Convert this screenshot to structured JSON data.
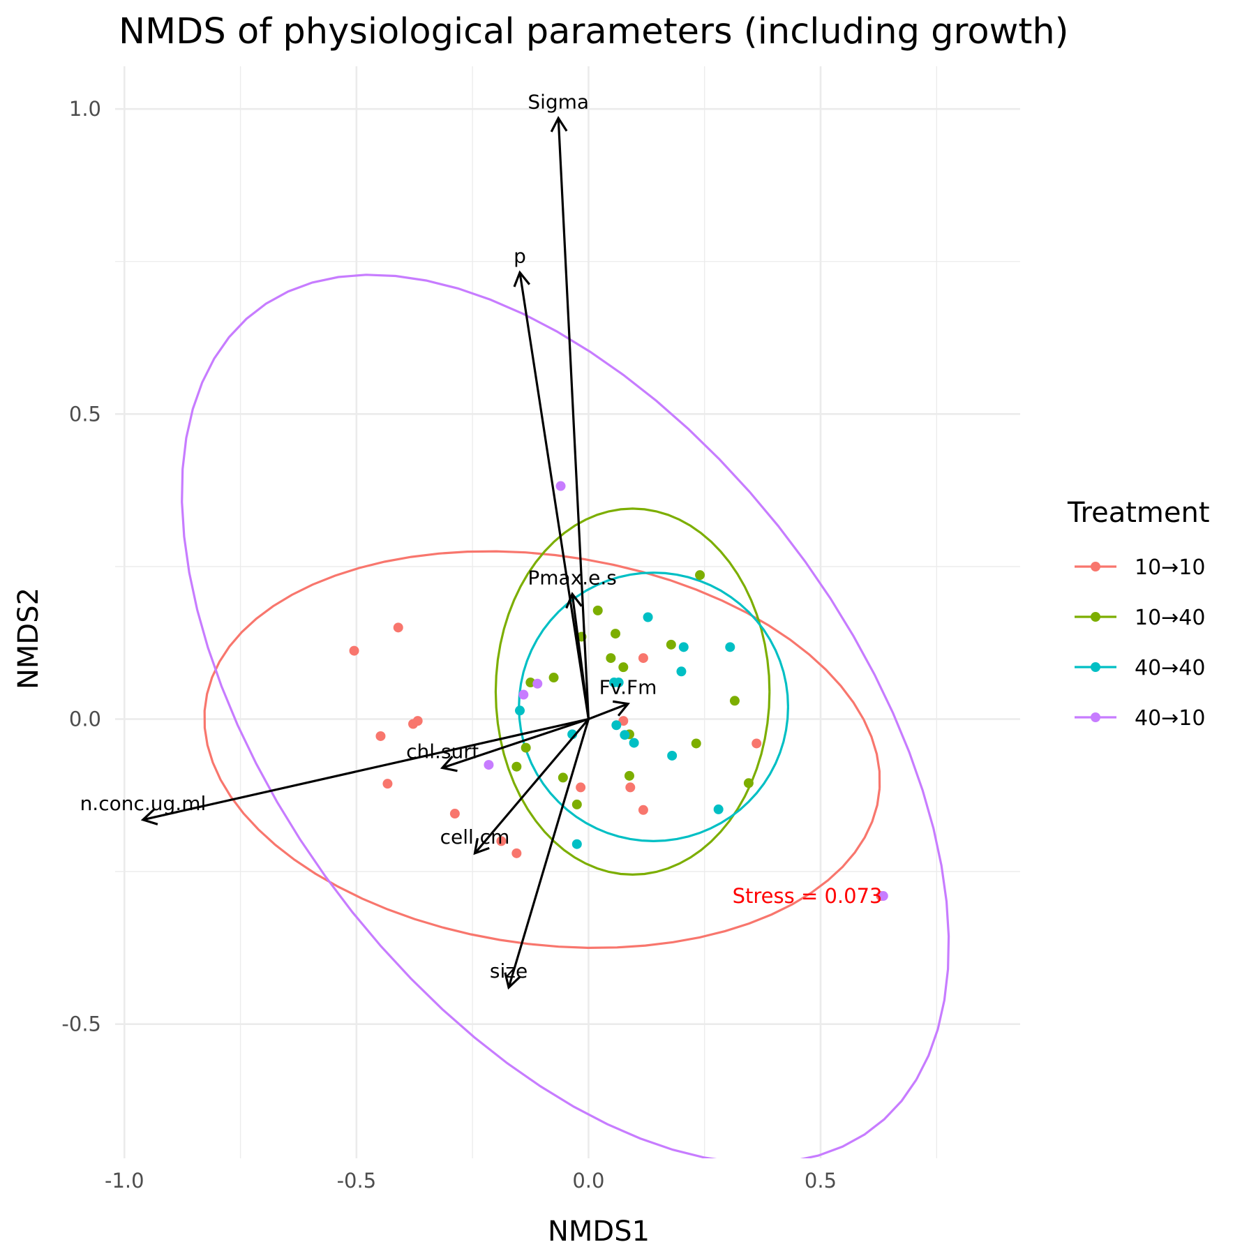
{
  "chart_data": {
    "type": "scatter",
    "title": "NMDS of physiological parameters (including growth)",
    "xlabel": "NMDS1",
    "ylabel": "NMDS2",
    "xlim": [
      -1.02,
      0.93
    ],
    "ylim": [
      -0.72,
      1.07
    ],
    "x_ticks": [
      -1.0,
      -0.5,
      0.0,
      0.5
    ],
    "x_tick_labels": [
      "-1.0",
      "-0.5",
      "0.0",
      "0.5"
    ],
    "y_ticks": [
      -0.5,
      0.0,
      0.5,
      1.0
    ],
    "y_tick_labels": [
      "-0.5",
      "0.0",
      "0.5",
      "1.0"
    ],
    "grid": true,
    "legend": {
      "title": "Treatment",
      "placement": "right",
      "entries": [
        "10→10",
        "10→40",
        "40→40",
        "40→10"
      ]
    },
    "series": [
      {
        "name": "10→10",
        "color": "#F8766D",
        "points": [
          [
            -0.505,
            0.112
          ],
          [
            -0.41,
            0.15
          ],
          [
            -0.378,
            -0.008
          ],
          [
            -0.368,
            -0.003
          ],
          [
            -0.448,
            -0.028
          ],
          [
            -0.433,
            -0.106
          ],
          [
            -0.288,
            -0.155
          ],
          [
            -0.188,
            -0.2
          ],
          [
            -0.155,
            -0.22
          ],
          [
            -0.017,
            -0.112
          ],
          [
            0.075,
            -0.003
          ],
          [
            0.09,
            -0.112
          ],
          [
            0.118,
            0.1
          ],
          [
            0.118,
            -0.149
          ],
          [
            0.362,
            -0.04
          ],
          [
            0.63,
            -0.29
          ]
        ],
        "ellipse": {
          "center": [
            -0.1,
            -0.05
          ],
          "semi_axes": [
            0.73,
            0.32
          ],
          "angle_deg": -5
        }
      },
      {
        "name": "10→40",
        "color": "#7CAE00",
        "points": [
          [
            0.24,
            0.236
          ],
          [
            0.02,
            0.178
          ],
          [
            0.058,
            0.14
          ],
          [
            0.178,
            0.122
          ],
          [
            0.048,
            0.1
          ],
          [
            0.075,
            0.085
          ],
          [
            -0.075,
            0.068
          ],
          [
            -0.125,
            0.06
          ],
          [
            0.315,
            0.03
          ],
          [
            -0.135,
            -0.047
          ],
          [
            -0.155,
            -0.078
          ],
          [
            0.232,
            -0.04
          ],
          [
            0.088,
            -0.093
          ],
          [
            -0.055,
            -0.096
          ],
          [
            0.345,
            -0.105
          ],
          [
            -0.025,
            -0.14
          ],
          [
            0.088,
            -0.025
          ],
          [
            -0.015,
            0.135
          ]
        ],
        "ellipse": {
          "center": [
            0.095,
            0.045
          ],
          "semi_axes": [
            0.295,
            0.3
          ],
          "angle_deg": 0
        }
      },
      {
        "name": "40→40",
        "color": "#00BFC4",
        "points": [
          [
            0.128,
            0.167
          ],
          [
            0.305,
            0.118
          ],
          [
            0.205,
            0.118
          ],
          [
            0.2,
            0.078
          ],
          [
            0.055,
            0.06
          ],
          [
            0.065,
            0.06
          ],
          [
            -0.148,
            0.014
          ],
          [
            0.06,
            -0.01
          ],
          [
            -0.035,
            -0.025
          ],
          [
            0.078,
            -0.026
          ],
          [
            0.098,
            -0.039
          ],
          [
            0.18,
            -0.06
          ],
          [
            0.28,
            -0.148
          ],
          [
            -0.025,
            -0.205
          ]
        ],
        "ellipse": {
          "center": [
            0.14,
            0.02
          ],
          "semi_axes": [
            0.29,
            0.22
          ],
          "angle_deg": 0
        }
      },
      {
        "name": "40→10",
        "color": "#C77CFF",
        "points": [
          [
            -0.06,
            0.382
          ],
          [
            -0.11,
            0.058
          ],
          [
            -0.14,
            0.04
          ],
          [
            -0.215,
            -0.075
          ],
          [
            0.635,
            -0.29
          ]
        ],
        "ellipse": {
          "center": [
            -0.05,
            0.0
          ],
          "semi_axes": [
            0.96,
            0.54
          ],
          "angle_deg": -38
        }
      }
    ],
    "vectors": [
      {
        "label": "Sigma",
        "x": -0.065,
        "y": 0.985
      },
      {
        "label": "p",
        "x": -0.148,
        "y": 0.732
      },
      {
        "label": "Pmax.e.s",
        "x": -0.035,
        "y": 0.205
      },
      {
        "label": "Fv.Fm",
        "x": 0.085,
        "y": 0.025
      },
      {
        "label": "chl.surf",
        "x": -0.315,
        "y": -0.08
      },
      {
        "label": "n.conc.ug.ml",
        "x": -0.96,
        "y": -0.165
      },
      {
        "label": "cell.cm",
        "x": -0.245,
        "y": -0.22
      },
      {
        "label": "size",
        "x": -0.172,
        "y": -0.44
      }
    ],
    "annotation": {
      "text": "Stress = 0.073",
      "x": 0.31,
      "y": -0.29,
      "color": "#ff0000"
    }
  }
}
